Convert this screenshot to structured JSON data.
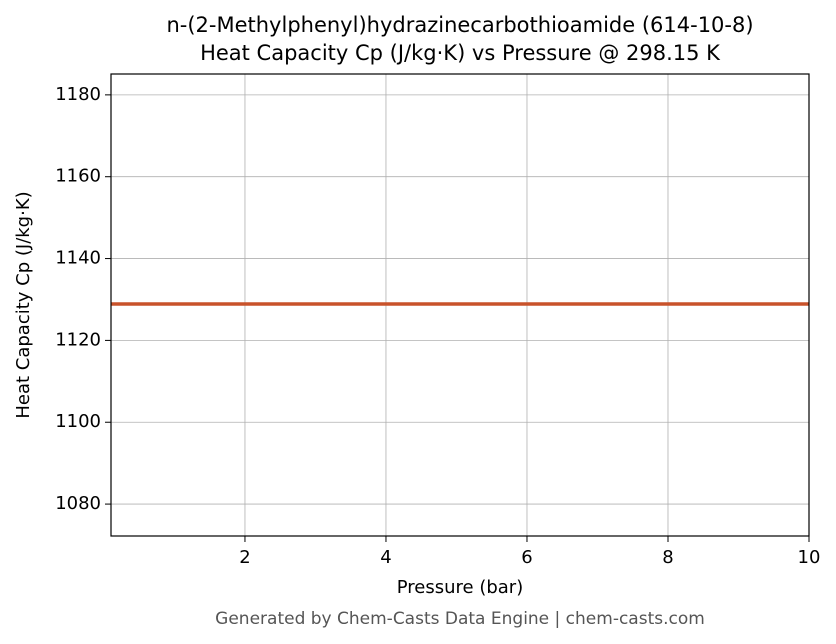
{
  "chart_data": {
    "type": "line",
    "title": "n-(2-Methylphenyl)hydrazinecarbothioamide (614-10-8)",
    "subtitle": "Heat Capacity Cp (J/kg·K) vs Pressure @ 298.15 K",
    "x_label": "Pressure (bar)",
    "y_label": "Heat Capacity Cp (J/kg·K)",
    "footer": "Generated by Chem-Casts Data Engine | chem-casts.com",
    "x": [
      0.1,
      10
    ],
    "series": [
      {
        "name": "Cp",
        "color": "#c8522a",
        "values": [
          1128.9,
          1128.9
        ]
      }
    ],
    "xlim": [
      0.1,
      10
    ],
    "xticks": [
      2,
      4,
      6,
      8,
      10
    ],
    "ylim": [
      1072.2,
      1185.1
    ],
    "yticks": [
      1080,
      1100,
      1120,
      1140,
      1160,
      1180
    ],
    "grid": true
  }
}
